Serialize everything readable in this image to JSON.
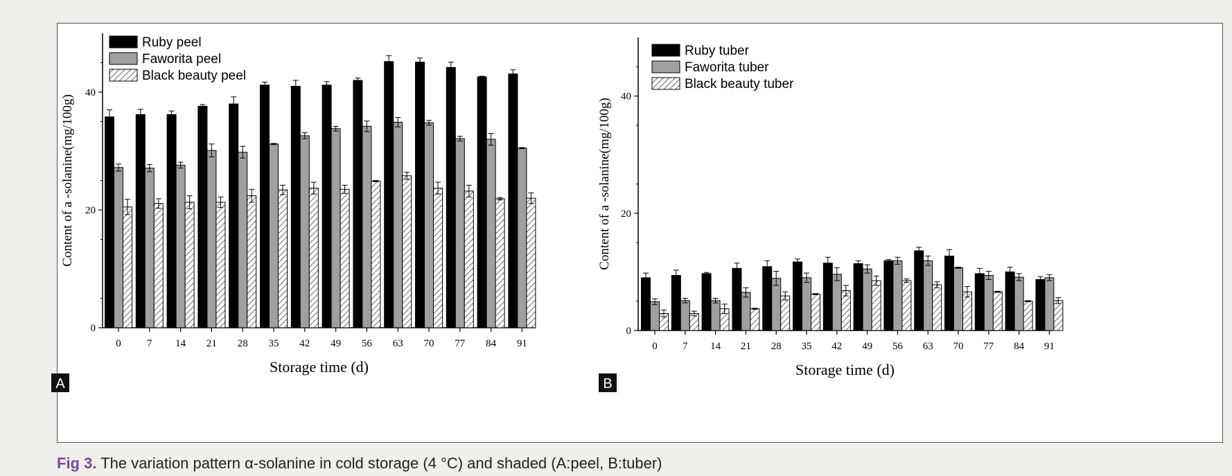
{
  "caption": {
    "label": "Fig 3.",
    "text": "The variation pattern α-solanine in cold storage (4 °C) and shaded (A:peel, B:tuber)"
  },
  "colors": {
    "series1": "#000000",
    "series2": "#a0a0a0",
    "hatch": "#444444",
    "caption_label": "#7b4a9b"
  },
  "chart_data": [
    {
      "panel": "A",
      "type": "bar",
      "xlabel": "Storage time (d)",
      "ylabel": "Content of a -solanine(mg/100g)",
      "ylim": [
        0,
        50
      ],
      "yticks": [
        0,
        20,
        40
      ],
      "legend_position": "top-left",
      "categories": [
        "0",
        "7",
        "14",
        "21",
        "28",
        "35",
        "42",
        "49",
        "56",
        "63",
        "70",
        "77",
        "84",
        "91"
      ],
      "series": [
        {
          "name": "Ruby peel",
          "fill": "solid-black",
          "values": [
            35.8,
            36.2,
            36.2,
            37.6,
            38.0,
            41.2,
            41.0,
            41.2,
            42.0,
            45.2,
            45.1,
            44.2,
            42.6,
            43.1
          ],
          "errors": [
            1.2,
            0.9,
            0.6,
            0.3,
            1.2,
            0.5,
            1.0,
            0.6,
            0.4,
            1.0,
            0.7,
            0.9,
            0.1,
            0.7
          ]
        },
        {
          "name": "Faworita peel",
          "fill": "solid-gray",
          "values": [
            27.2,
            27.1,
            27.6,
            30.1,
            29.8,
            31.2,
            32.6,
            33.8,
            34.2,
            34.9,
            34.8,
            32.1,
            32.0,
            30.5
          ],
          "errors": [
            0.6,
            0.6,
            0.5,
            1.1,
            1.0,
            0.1,
            0.5,
            0.4,
            0.9,
            0.8,
            0.4,
            0.4,
            1.0,
            0.1
          ]
        },
        {
          "name": "Black beauty peel",
          "fill": "hatched",
          "values": [
            20.5,
            21.1,
            21.3,
            21.3,
            22.4,
            23.4,
            23.7,
            23.5,
            24.9,
            25.8,
            23.7,
            23.2,
            21.9,
            22.0
          ],
          "errors": [
            1.3,
            0.8,
            1.1,
            0.9,
            1.1,
            0.8,
            1.0,
            0.7,
            0.1,
            0.6,
            1.0,
            1.0,
            0.2,
            0.9
          ]
        }
      ]
    },
    {
      "panel": "B",
      "type": "bar",
      "xlabel": "Storage time (d)",
      "ylabel": "Content of a -solanine(mg/100g)",
      "ylim": [
        0,
        50
      ],
      "yticks": [
        0,
        20,
        40
      ],
      "legend_position": "top-left",
      "categories": [
        "0",
        "7",
        "14",
        "21",
        "28",
        "35",
        "42",
        "49",
        "56",
        "63",
        "70",
        "77",
        "84",
        "91"
      ],
      "series": [
        {
          "name": "Ruby tuber",
          "fill": "solid-black",
          "values": [
            9.0,
            9.4,
            9.7,
            10.6,
            10.9,
            11.7,
            11.5,
            11.4,
            11.9,
            13.6,
            12.7,
            9.7,
            10.0,
            8.7
          ],
          "errors": [
            0.8,
            0.9,
            0.2,
            0.9,
            1.0,
            0.5,
            1.0,
            0.5,
            0.2,
            0.6,
            1.1,
            0.9,
            0.8,
            0.5
          ]
        },
        {
          "name": "Faworita tuber",
          "fill": "solid-gray",
          "values": [
            4.9,
            5.1,
            5.1,
            6.5,
            8.9,
            9.0,
            9.6,
            10.5,
            11.9,
            11.9,
            10.7,
            9.4,
            9.1,
            9.0
          ],
          "errors": [
            0.5,
            0.4,
            0.4,
            0.8,
            1.2,
            0.8,
            1.1,
            0.7,
            0.6,
            0.8,
            0.1,
            0.7,
            0.6,
            0.5
          ]
        },
        {
          "name": "Black beauty tuber",
          "fill": "hatched",
          "values": [
            2.9,
            2.9,
            3.7,
            3.7,
            5.9,
            6.2,
            6.8,
            8.5,
            8.5,
            7.8,
            6.6,
            6.6,
            5.0,
            5.1
          ],
          "errors": [
            0.6,
            0.4,
            0.8,
            0.1,
            0.7,
            0.1,
            0.9,
            0.8,
            0.3,
            0.5,
            0.9,
            0.1,
            0.1,
            0.5
          ]
        }
      ]
    }
  ],
  "panel_labels": [
    "A",
    "B"
  ]
}
